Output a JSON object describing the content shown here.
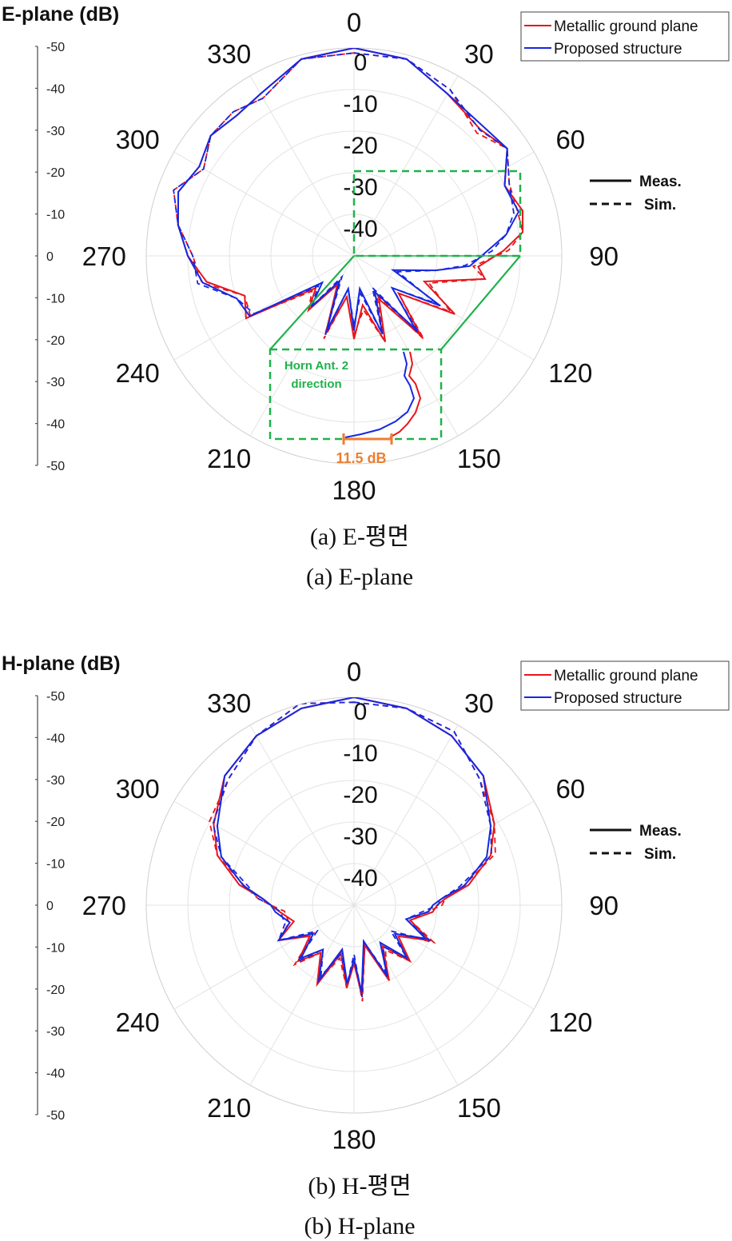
{
  "chart_data": [
    {
      "type": "polar-line",
      "title": "E-plane (dB)",
      "angle_ticks": [
        "0",
        "30",
        "60",
        "90",
        "120",
        "150",
        "180",
        "210",
        "240",
        "270",
        "300",
        "330"
      ],
      "radial_ticks": [
        "0",
        "-10",
        "-20",
        "-30",
        "-40"
      ],
      "r_range_db": [
        -50,
        0
      ],
      "side_axis_ticks": [
        "-50",
        "-40",
        "-30",
        "-20",
        "-10",
        "0",
        "-10",
        "-20",
        "-30",
        "-40",
        "-50"
      ],
      "legend": {
        "series": [
          "Metallic ground plane",
          "Proposed structure"
        ],
        "placement": "top-right"
      },
      "line_style_legend": [
        "Meas.",
        "Sim."
      ],
      "annotations": {
        "horn": [
          "Horn Ant. 2",
          "direction"
        ],
        "difference": "11.5 dB"
      },
      "caption_ko": "(a)  E-평면",
      "caption_en": "(a)  E-plane",
      "series": [
        {
          "name": "Metallic ground plane",
          "color": "#e8161b",
          "angles_deg": [
            0,
            15,
            30,
            45,
            55,
            65,
            75,
            82,
            88,
            95,
            100,
            110,
            120,
            130,
            140,
            150,
            160,
            170,
            180,
            190,
            200,
            210,
            220,
            230,
            240,
            250,
            260,
            270,
            280,
            290,
            300,
            310,
            320,
            330,
            345
          ],
          "db": [
            0,
            -1,
            -5,
            -7,
            -5,
            -10,
            -8,
            -9,
            -14,
            -20,
            -18,
            -32,
            -22,
            -36,
            -25,
            -38,
            -28,
            -38,
            -30,
            -40,
            -30,
            -42,
            -33,
            -38,
            -20,
            -22,
            -14,
            -10,
            -7,
            -5,
            -7,
            -5,
            -6,
            -5,
            -1
          ]
        },
        {
          "name": "Proposed structure",
          "color": "#1728e0",
          "angles_deg": [
            0,
            15,
            30,
            45,
            55,
            65,
            75,
            82,
            88,
            95,
            100,
            110,
            120,
            130,
            140,
            150,
            160,
            170,
            180,
            190,
            200,
            210,
            220,
            230,
            240,
            250,
            260,
            270,
            280,
            290,
            300,
            310,
            320,
            330,
            345
          ],
          "db": [
            0,
            -1,
            -5,
            -6,
            -5,
            -10,
            -9,
            -13,
            -18,
            -22,
            -30,
            -40,
            -26,
            -38,
            -27,
            -40,
            -30,
            -42,
            -32,
            -42,
            -31,
            -43,
            -34,
            -40,
            -21,
            -20,
            -13,
            -10,
            -7,
            -5,
            -7,
            -5,
            -6,
            -5,
            -1
          ]
        }
      ]
    },
    {
      "type": "polar-line",
      "title": "H-plane (dB)",
      "angle_ticks": [
        "0",
        "30",
        "60",
        "90",
        "120",
        "150",
        "180",
        "210",
        "240",
        "270",
        "300",
        "330"
      ],
      "radial_ticks": [
        "0",
        "-10",
        "-20",
        "-30",
        "-40"
      ],
      "r_range_db": [
        -50,
        0
      ],
      "side_axis_ticks": [
        "-50",
        "-40",
        "-30",
        "-20",
        "-10",
        "0",
        "-10",
        "-20",
        "-30",
        "-40",
        "-50"
      ],
      "legend": {
        "series": [
          "Metallic ground plane",
          "Proposed structure"
        ],
        "placement": "top-right"
      },
      "line_style_legend": [
        "Meas.",
        "Sim."
      ],
      "caption_ko": "(b)  H-평면",
      "caption_en": "(b)  H-plane",
      "series": [
        {
          "name": "Metallic ground plane",
          "color": "#e8161b",
          "angles_deg": [
            0,
            15,
            30,
            45,
            60,
            70,
            80,
            86,
            90,
            95,
            105,
            115,
            125,
            135,
            145,
            155,
            165,
            175,
            180,
            185,
            195,
            205,
            215,
            225,
            235,
            245,
            255,
            265,
            270,
            274,
            280,
            290,
            300,
            315,
            330,
            345
          ],
          "db": [
            0,
            -1,
            -3,
            -6,
            -11,
            -15,
            -22,
            -28,
            -30,
            -31,
            -36,
            -30,
            -37,
            -31,
            -38,
            -30,
            -40,
            -28,
            -36,
            -30,
            -38,
            -29,
            -36,
            -31,
            -37,
            -30,
            -35,
            -32,
            -30,
            -28,
            -22,
            -15,
            -11,
            -6,
            -3,
            -1
          ]
        },
        {
          "name": "Proposed structure",
          "color": "#1728e0",
          "angles_deg": [
            0,
            15,
            30,
            45,
            60,
            70,
            80,
            86,
            90,
            95,
            105,
            115,
            125,
            135,
            145,
            155,
            165,
            175,
            180,
            185,
            195,
            205,
            215,
            225,
            235,
            245,
            255,
            265,
            270,
            274,
            280,
            290,
            300,
            315,
            330,
            345
          ],
          "db": [
            0,
            -1,
            -3,
            -6,
            -12,
            -16,
            -23,
            -29,
            -31,
            -32,
            -37,
            -31,
            -38,
            -32,
            -39,
            -31,
            -41,
            -29,
            -37,
            -31,
            -39,
            -30,
            -37,
            -32,
            -38,
            -30,
            -34,
            -31,
            -30,
            -28,
            -23,
            -16,
            -12,
            -6,
            -3,
            -1
          ]
        }
      ]
    }
  ]
}
